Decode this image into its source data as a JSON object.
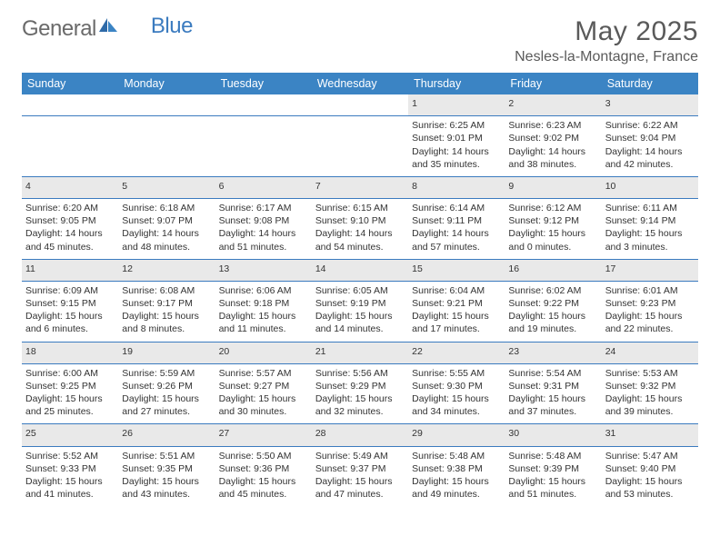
{
  "brand": {
    "name_part1": "General",
    "name_part2": "Blue"
  },
  "title": "May 2025",
  "location": "Nesles-la-Montagne, France",
  "colors": {
    "header_bg": "#3b84c4",
    "border": "#3b7bbf",
    "daynum_bg": "#e9e9e9",
    "text": "#333333",
    "title_text": "#5a5a5a",
    "logo_gray": "#6a6a6a"
  },
  "typography": {
    "base_font": "Arial",
    "title_fontsize": 30,
    "location_fontsize": 16,
    "header_fontsize": 12.5,
    "cell_fontsize": 10.5,
    "daynum_fontsize": 12
  },
  "weekdays": [
    "Sunday",
    "Monday",
    "Tuesday",
    "Wednesday",
    "Thursday",
    "Friday",
    "Saturday"
  ],
  "weeks": [
    [
      null,
      null,
      null,
      null,
      {
        "n": "1",
        "sunrise": "6:25 AM",
        "sunset": "9:01 PM",
        "daylight": "14 hours and 35 minutes."
      },
      {
        "n": "2",
        "sunrise": "6:23 AM",
        "sunset": "9:02 PM",
        "daylight": "14 hours and 38 minutes."
      },
      {
        "n": "3",
        "sunrise": "6:22 AM",
        "sunset": "9:04 PM",
        "daylight": "14 hours and 42 minutes."
      }
    ],
    [
      {
        "n": "4",
        "sunrise": "6:20 AM",
        "sunset": "9:05 PM",
        "daylight": "14 hours and 45 minutes."
      },
      {
        "n": "5",
        "sunrise": "6:18 AM",
        "sunset": "9:07 PM",
        "daylight": "14 hours and 48 minutes."
      },
      {
        "n": "6",
        "sunrise": "6:17 AM",
        "sunset": "9:08 PM",
        "daylight": "14 hours and 51 minutes."
      },
      {
        "n": "7",
        "sunrise": "6:15 AM",
        "sunset": "9:10 PM",
        "daylight": "14 hours and 54 minutes."
      },
      {
        "n": "8",
        "sunrise": "6:14 AM",
        "sunset": "9:11 PM",
        "daylight": "14 hours and 57 minutes."
      },
      {
        "n": "9",
        "sunrise": "6:12 AM",
        "sunset": "9:12 PM",
        "daylight": "15 hours and 0 minutes."
      },
      {
        "n": "10",
        "sunrise": "6:11 AM",
        "sunset": "9:14 PM",
        "daylight": "15 hours and 3 minutes."
      }
    ],
    [
      {
        "n": "11",
        "sunrise": "6:09 AM",
        "sunset": "9:15 PM",
        "daylight": "15 hours and 6 minutes."
      },
      {
        "n": "12",
        "sunrise": "6:08 AM",
        "sunset": "9:17 PM",
        "daylight": "15 hours and 8 minutes."
      },
      {
        "n": "13",
        "sunrise": "6:06 AM",
        "sunset": "9:18 PM",
        "daylight": "15 hours and 11 minutes."
      },
      {
        "n": "14",
        "sunrise": "6:05 AM",
        "sunset": "9:19 PM",
        "daylight": "15 hours and 14 minutes."
      },
      {
        "n": "15",
        "sunrise": "6:04 AM",
        "sunset": "9:21 PM",
        "daylight": "15 hours and 17 minutes."
      },
      {
        "n": "16",
        "sunrise": "6:02 AM",
        "sunset": "9:22 PM",
        "daylight": "15 hours and 19 minutes."
      },
      {
        "n": "17",
        "sunrise": "6:01 AM",
        "sunset": "9:23 PM",
        "daylight": "15 hours and 22 minutes."
      }
    ],
    [
      {
        "n": "18",
        "sunrise": "6:00 AM",
        "sunset": "9:25 PM",
        "daylight": "15 hours and 25 minutes."
      },
      {
        "n": "19",
        "sunrise": "5:59 AM",
        "sunset": "9:26 PM",
        "daylight": "15 hours and 27 minutes."
      },
      {
        "n": "20",
        "sunrise": "5:57 AM",
        "sunset": "9:27 PM",
        "daylight": "15 hours and 30 minutes."
      },
      {
        "n": "21",
        "sunrise": "5:56 AM",
        "sunset": "9:29 PM",
        "daylight": "15 hours and 32 minutes."
      },
      {
        "n": "22",
        "sunrise": "5:55 AM",
        "sunset": "9:30 PM",
        "daylight": "15 hours and 34 minutes."
      },
      {
        "n": "23",
        "sunrise": "5:54 AM",
        "sunset": "9:31 PM",
        "daylight": "15 hours and 37 minutes."
      },
      {
        "n": "24",
        "sunrise": "5:53 AM",
        "sunset": "9:32 PM",
        "daylight": "15 hours and 39 minutes."
      }
    ],
    [
      {
        "n": "25",
        "sunrise": "5:52 AM",
        "sunset": "9:33 PM",
        "daylight": "15 hours and 41 minutes."
      },
      {
        "n": "26",
        "sunrise": "5:51 AM",
        "sunset": "9:35 PM",
        "daylight": "15 hours and 43 minutes."
      },
      {
        "n": "27",
        "sunrise": "5:50 AM",
        "sunset": "9:36 PM",
        "daylight": "15 hours and 45 minutes."
      },
      {
        "n": "28",
        "sunrise": "5:49 AM",
        "sunset": "9:37 PM",
        "daylight": "15 hours and 47 minutes."
      },
      {
        "n": "29",
        "sunrise": "5:48 AM",
        "sunset": "9:38 PM",
        "daylight": "15 hours and 49 minutes."
      },
      {
        "n": "30",
        "sunrise": "5:48 AM",
        "sunset": "9:39 PM",
        "daylight": "15 hours and 51 minutes."
      },
      {
        "n": "31",
        "sunrise": "5:47 AM",
        "sunset": "9:40 PM",
        "daylight": "15 hours and 53 minutes."
      }
    ]
  ],
  "labels": {
    "sunrise": "Sunrise:",
    "sunset": "Sunset:",
    "daylight": "Daylight:"
  }
}
